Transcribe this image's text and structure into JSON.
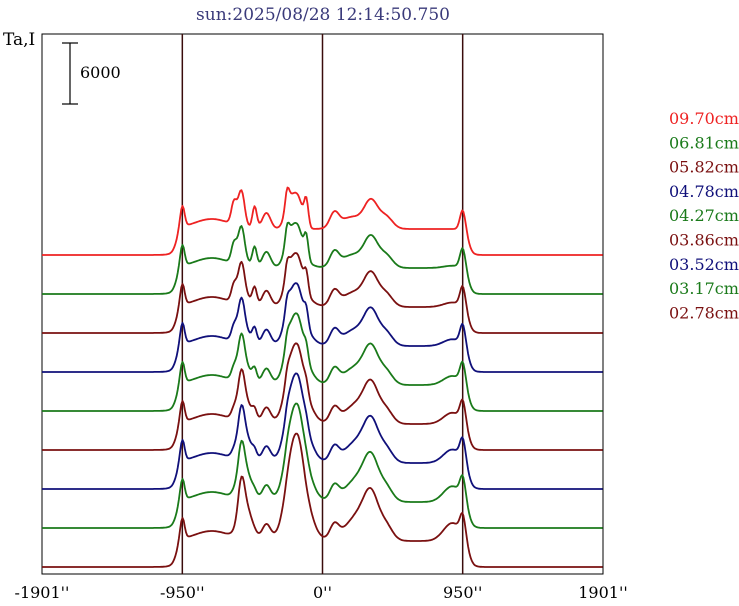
{
  "chart_data": {
    "type": "line",
    "title": "sun:2025/08/28 12:14:50.750",
    "ylabel": "Ta,I",
    "scale_bar_label": "6000",
    "scale_bar_value": 6000,
    "x_tick_labels": [
      "-1901''",
      "-950''",
      "0''",
      "950''",
      "1901''"
    ],
    "x_tick_values": [
      -1901,
      -950,
      0,
      950,
      1901
    ],
    "xlim": [
      -1901,
      1901
    ],
    "vertical_lines": [
      -950,
      0,
      950
    ],
    "grid": false,
    "legend_position": "right",
    "series": [
      {
        "name": "09.70cm",
        "color": "#ee2222",
        "offset": 8
      },
      {
        "name": "06.81cm",
        "color": "#1a7a1a",
        "offset": 7
      },
      {
        "name": "05.82cm",
        "color": "#7a1010",
        "offset": 6
      },
      {
        "name": "04.78cm",
        "color": "#10107a",
        "offset": 5
      },
      {
        "name": "04.27cm",
        "color": "#1a7a1a",
        "offset": 4
      },
      {
        "name": "03.86cm",
        "color": "#7a1010",
        "offset": 3
      },
      {
        "name": "03.52cm",
        "color": "#10107a",
        "offset": 2
      },
      {
        "name": "03.17cm",
        "color": "#1a7a1a",
        "offset": 1
      },
      {
        "name": "02.78cm",
        "color": "#7a1010",
        "offset": 0
      }
    ]
  }
}
